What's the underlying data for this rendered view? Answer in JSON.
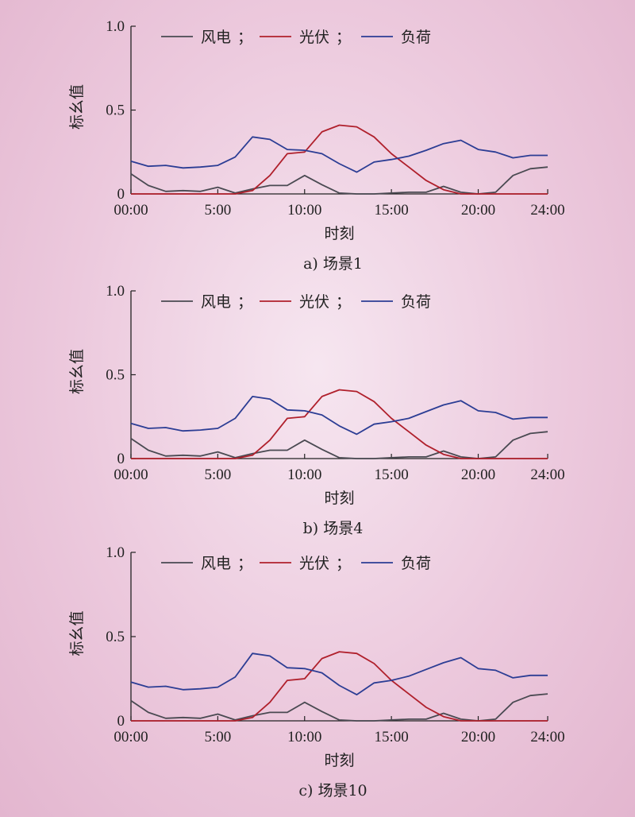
{
  "colors": {
    "wind": "#4a4a52",
    "pv": "#b0202c",
    "load": "#2c3d94"
  },
  "chart_data": [
    {
      "type": "line",
      "caption": "a) 场景1",
      "xlabel": "时刻",
      "ylabel": "标幺值",
      "x_tick_labels": [
        "00:00",
        "5:00",
        "10:00",
        "15:00",
        "20:00",
        "24:00"
      ],
      "x_tick_hours": [
        0,
        5,
        10,
        15,
        20,
        24
      ],
      "y_tick_labels": [
        "0",
        "0.5",
        "1.0"
      ],
      "y_tick_values": [
        0,
        0.5,
        1.0
      ],
      "xlim": [
        0,
        24
      ],
      "ylim": [
        0,
        1.0
      ],
      "legend_separator": "；",
      "x_hours": [
        0,
        1,
        2,
        3,
        4,
        5,
        6,
        7,
        8,
        9,
        10,
        11,
        12,
        13,
        14,
        15,
        16,
        17,
        18,
        19,
        20,
        21,
        22,
        23,
        24
      ],
      "series": [
        {
          "name": "风电",
          "color_key": "wind",
          "values": [
            0.12,
            0.05,
            0.015,
            0.02,
            0.015,
            0.04,
            0.005,
            0.03,
            0.05,
            0.05,
            0.11,
            0.055,
            0.005,
            0.0,
            0.0,
            0.005,
            0.01,
            0.01,
            0.045,
            0.01,
            0.0,
            0.01,
            0.11,
            0.15,
            0.16
          ]
        },
        {
          "name": "光伏",
          "color_key": "pv",
          "values": [
            0.0,
            0.0,
            0.0,
            0.0,
            0.0,
            0.0,
            0.0,
            0.02,
            0.11,
            0.24,
            0.25,
            0.37,
            0.41,
            0.4,
            0.34,
            0.24,
            0.16,
            0.08,
            0.025,
            0.0,
            0.0,
            0.0,
            0.0,
            0.0,
            0.0
          ]
        },
        {
          "name": "负荷",
          "color_key": "load",
          "values": [
            0.195,
            0.165,
            0.17,
            0.155,
            0.16,
            0.17,
            0.22,
            0.34,
            0.325,
            0.265,
            0.26,
            0.24,
            0.18,
            0.13,
            0.19,
            0.205,
            0.225,
            0.26,
            0.3,
            0.32,
            0.265,
            0.25,
            0.215,
            0.23,
            0.23
          ]
        }
      ]
    },
    {
      "type": "line",
      "caption": "b) 场景4",
      "xlabel": "时刻",
      "ylabel": "标幺值",
      "x_tick_labels": [
        "00:00",
        "5:00",
        "10:00",
        "15:00",
        "20:00",
        "24:00"
      ],
      "x_tick_hours": [
        0,
        5,
        10,
        15,
        20,
        24
      ],
      "y_tick_labels": [
        "0",
        "0.5",
        "1.0"
      ],
      "y_tick_values": [
        0,
        0.5,
        1.0
      ],
      "xlim": [
        0,
        24
      ],
      "ylim": [
        0,
        1.0
      ],
      "legend_separator": "；",
      "x_hours": [
        0,
        1,
        2,
        3,
        4,
        5,
        6,
        7,
        8,
        9,
        10,
        11,
        12,
        13,
        14,
        15,
        16,
        17,
        18,
        19,
        20,
        21,
        22,
        23,
        24
      ],
      "series": [
        {
          "name": "风电",
          "color_key": "wind",
          "values": [
            0.12,
            0.05,
            0.015,
            0.02,
            0.015,
            0.04,
            0.005,
            0.03,
            0.05,
            0.05,
            0.11,
            0.055,
            0.005,
            0.0,
            0.0,
            0.005,
            0.01,
            0.01,
            0.045,
            0.01,
            0.0,
            0.01,
            0.11,
            0.15,
            0.16
          ]
        },
        {
          "name": "光伏",
          "color_key": "pv",
          "values": [
            0.0,
            0.0,
            0.0,
            0.0,
            0.0,
            0.0,
            0.0,
            0.02,
            0.11,
            0.24,
            0.25,
            0.37,
            0.41,
            0.4,
            0.34,
            0.24,
            0.16,
            0.08,
            0.025,
            0.0,
            0.0,
            0.0,
            0.0,
            0.0,
            0.0
          ]
        },
        {
          "name": "负荷",
          "color_key": "load",
          "values": [
            0.21,
            0.18,
            0.185,
            0.165,
            0.17,
            0.18,
            0.24,
            0.37,
            0.355,
            0.29,
            0.285,
            0.26,
            0.195,
            0.145,
            0.205,
            0.22,
            0.24,
            0.28,
            0.32,
            0.345,
            0.285,
            0.275,
            0.235,
            0.245,
            0.245
          ]
        }
      ]
    },
    {
      "type": "line",
      "caption": "c) 场景10",
      "xlabel": "时刻",
      "ylabel": "标幺值",
      "x_tick_labels": [
        "00:00",
        "5:00",
        "10:00",
        "15:00",
        "20:00",
        "24:00"
      ],
      "x_tick_hours": [
        0,
        5,
        10,
        15,
        20,
        24
      ],
      "y_tick_labels": [
        "0",
        "0.5",
        "1.0"
      ],
      "y_tick_values": [
        0,
        0.5,
        1.0
      ],
      "xlim": [
        0,
        24
      ],
      "ylim": [
        0,
        1.0
      ],
      "legend_separator": "；",
      "x_hours": [
        0,
        1,
        2,
        3,
        4,
        5,
        6,
        7,
        8,
        9,
        10,
        11,
        12,
        13,
        14,
        15,
        16,
        17,
        18,
        19,
        20,
        21,
        22,
        23,
        24
      ],
      "series": [
        {
          "name": "风电",
          "color_key": "wind",
          "values": [
            0.12,
            0.05,
            0.015,
            0.02,
            0.015,
            0.04,
            0.005,
            0.03,
            0.05,
            0.05,
            0.11,
            0.055,
            0.005,
            0.0,
            0.0,
            0.005,
            0.01,
            0.01,
            0.045,
            0.01,
            0.0,
            0.01,
            0.11,
            0.15,
            0.16
          ]
        },
        {
          "name": "光伏",
          "color_key": "pv",
          "values": [
            0.0,
            0.0,
            0.0,
            0.0,
            0.0,
            0.0,
            0.0,
            0.02,
            0.11,
            0.24,
            0.25,
            0.37,
            0.41,
            0.4,
            0.34,
            0.24,
            0.16,
            0.08,
            0.025,
            0.0,
            0.0,
            0.0,
            0.0,
            0.0,
            0.0
          ]
        },
        {
          "name": "负荷",
          "color_key": "load",
          "values": [
            0.23,
            0.2,
            0.205,
            0.185,
            0.19,
            0.2,
            0.26,
            0.4,
            0.385,
            0.315,
            0.31,
            0.285,
            0.21,
            0.155,
            0.225,
            0.24,
            0.265,
            0.305,
            0.345,
            0.375,
            0.31,
            0.3,
            0.255,
            0.27,
            0.27
          ]
        }
      ]
    }
  ]
}
